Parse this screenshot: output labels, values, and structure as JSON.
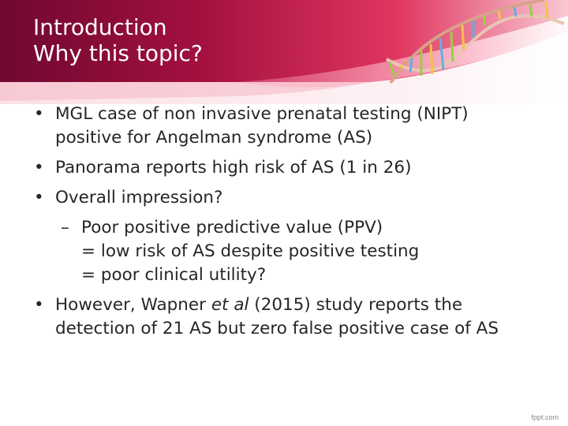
{
  "title": {
    "line1": "Introduction",
    "line2": "Why this topic?"
  },
  "bullets": {
    "b1": {
      "line1": "MGL case of non invasive prenatal testing (NIPT)",
      "line2": "positive for Angelman syndrome (AS)"
    },
    "b2": "Panorama reports high risk of AS (1 in 26)",
    "b3": "Overall impression?",
    "sub1": {
      "line1": "Poor positive predictive value (PPV)",
      "line2": "= low risk of AS despite positive testing",
      "line3": "= poor clinical utility?"
    },
    "b4": {
      "pre": "However, Wapner ",
      "italic": "et al",
      "post": " (2015) study reports the",
      "line2": "detection of 21 AS but zero false positive case of AS"
    }
  },
  "footer": "fppt.com",
  "colors": {
    "banner_dark": "#7a0a33",
    "banner_mid": "#c8154f",
    "banner_light": "#f3a2b5",
    "text": "#262626"
  }
}
